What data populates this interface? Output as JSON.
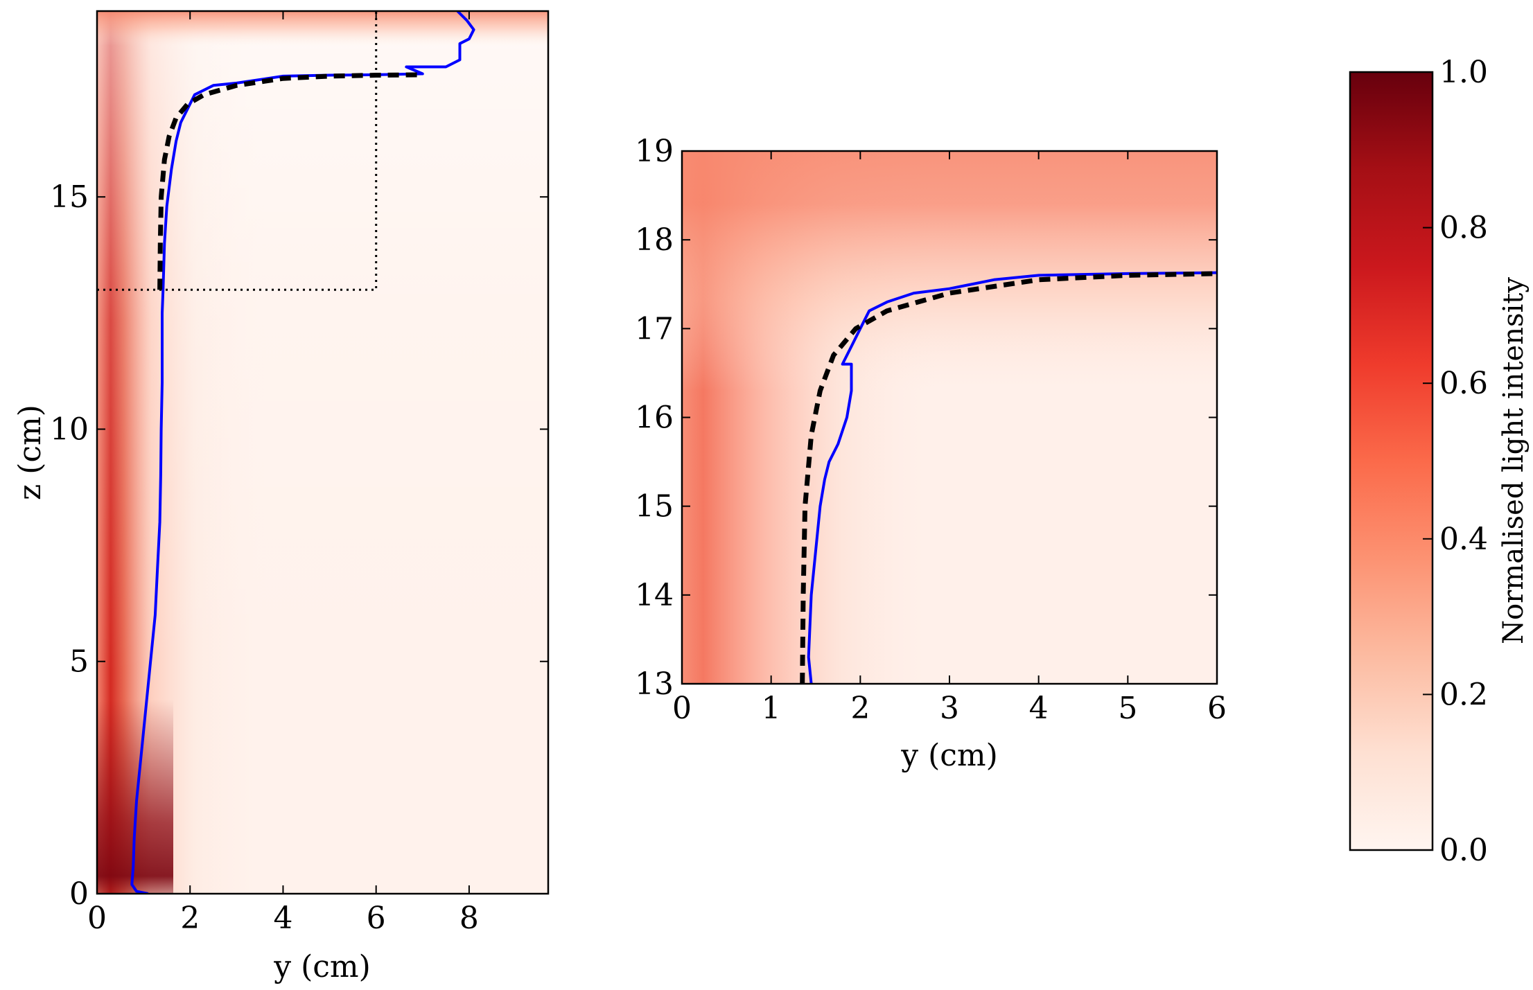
{
  "chart_data": [
    {
      "type": "heatmap",
      "panel": "full-view",
      "xlabel": "y (cm)",
      "ylabel": "z (cm)",
      "xlim": [
        0,
        9.7
      ],
      "ylim": [
        0,
        19
      ],
      "xticks": [
        0,
        2,
        4,
        6,
        8
      ],
      "yticks": [
        0,
        5,
        10,
        15
      ],
      "colormap": "Reds",
      "series": [
        {
          "style": "solid",
          "color": "#0000ff",
          "points": [
            [
              1.1,
              0
            ],
            [
              0.85,
              0.05
            ],
            [
              0.75,
              0.2
            ],
            [
              0.78,
              0.6
            ],
            [
              0.8,
              1.2
            ],
            [
              0.85,
              2
            ],
            [
              0.95,
              3
            ],
            [
              1.05,
              4
            ],
            [
              1.15,
              5
            ],
            [
              1.25,
              6
            ],
            [
              1.3,
              7
            ],
            [
              1.35,
              8
            ],
            [
              1.37,
              9
            ],
            [
              1.38,
              10
            ],
            [
              1.4,
              11
            ],
            [
              1.4,
              12
            ],
            [
              1.4,
              12.5
            ],
            [
              1.42,
              13
            ],
            [
              1.45,
              14
            ],
            [
              1.5,
              14.8
            ],
            [
              1.6,
              15.6
            ],
            [
              1.7,
              16.2
            ],
            [
              1.8,
              16.6
            ],
            [
              2.1,
              17.2
            ],
            [
              2.5,
              17.4
            ],
            [
              3,
              17.45
            ],
            [
              4,
              17.6
            ],
            [
              5,
              17.62
            ],
            [
              6,
              17.63
            ],
            [
              7,
              17.65
            ],
            [
              6.65,
              17.8
            ],
            [
              7.5,
              17.8
            ],
            [
              7.8,
              17.95
            ],
            [
              7.8,
              18.3
            ],
            [
              8,
              18.4
            ],
            [
              8.1,
              18.6
            ],
            [
              7.95,
              18.8
            ],
            [
              7.75,
              19
            ]
          ]
        },
        {
          "style": "dashed",
          "color": "#000000",
          "points": [
            [
              1.35,
              13
            ],
            [
              1.36,
              14
            ],
            [
              1.38,
              15
            ],
            [
              1.45,
              15.8
            ],
            [
              1.55,
              16.3
            ],
            [
              1.7,
              16.7
            ],
            [
              1.95,
              17
            ],
            [
              2.3,
              17.2
            ],
            [
              3,
              17.4
            ],
            [
              4,
              17.55
            ],
            [
              5,
              17.6
            ],
            [
              6,
              17.62
            ],
            [
              7,
              17.63
            ]
          ]
        },
        {
          "style": "dotted",
          "color": "#000000",
          "points": [
            [
              0,
              13
            ],
            [
              6,
              13
            ],
            [
              6,
              19
            ]
          ]
        }
      ]
    },
    {
      "type": "heatmap",
      "panel": "zoom-view",
      "xlabel": "y (cm)",
      "ylabel": "",
      "xlim": [
        0,
        6
      ],
      "ylim": [
        13,
        19
      ],
      "xticks": [
        0,
        1,
        2,
        3,
        4,
        5,
        6
      ],
      "yticks": [
        13,
        14,
        15,
        16,
        17,
        18,
        19
      ],
      "colormap": "Reds",
      "series": [
        {
          "style": "solid",
          "color": "#0000ff",
          "points": [
            [
              1.45,
              13
            ],
            [
              1.42,
              13.3
            ],
            [
              1.45,
              14
            ],
            [
              1.5,
              14.5
            ],
            [
              1.55,
              15
            ],
            [
              1.6,
              15.3
            ],
            [
              1.65,
              15.5
            ],
            [
              1.75,
              15.7
            ],
            [
              1.85,
              16
            ],
            [
              1.9,
              16.3
            ],
            [
              1.9,
              16.6
            ],
            [
              1.8,
              16.6
            ],
            [
              1.9,
              16.8
            ],
            [
              2,
              17
            ],
            [
              2.1,
              17.2
            ],
            [
              2.3,
              17.3
            ],
            [
              2.6,
              17.4
            ],
            [
              3,
              17.45
            ],
            [
              3.5,
              17.55
            ],
            [
              4,
              17.6
            ],
            [
              5,
              17.62
            ],
            [
              6,
              17.63
            ]
          ]
        },
        {
          "style": "dashed",
          "color": "#000000",
          "points": [
            [
              1.35,
              13
            ],
            [
              1.36,
              14
            ],
            [
              1.38,
              15
            ],
            [
              1.45,
              15.8
            ],
            [
              1.55,
              16.3
            ],
            [
              1.7,
              16.7
            ],
            [
              1.95,
              17
            ],
            [
              2.3,
              17.2
            ],
            [
              3,
              17.4
            ],
            [
              4,
              17.55
            ],
            [
              5,
              17.6
            ],
            [
              6,
              17.62
            ]
          ]
        }
      ]
    },
    {
      "type": "colorbar",
      "label": "Normalised light intensity",
      "range": [
        0,
        1
      ],
      "ticks": [
        "0.0",
        "0.2",
        "0.4",
        "0.6",
        "0.8",
        "1.0"
      ]
    }
  ]
}
